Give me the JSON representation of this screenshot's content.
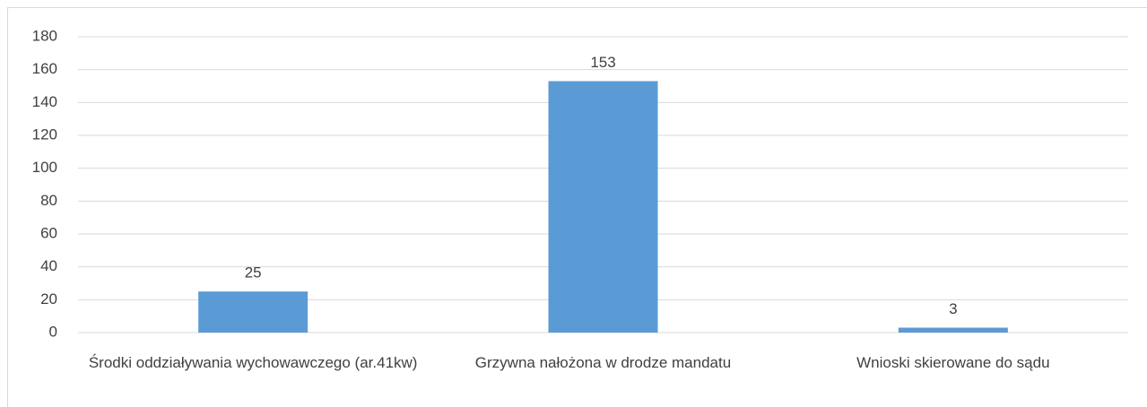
{
  "chart_data": {
    "type": "bar",
    "categories": [
      "Środki oddziaływania wychowawczego (ar.41kw)",
      "Grzywna nałożona w drodze mandatu",
      "Wnioski skierowane do sądu"
    ],
    "values": [
      25,
      153,
      3
    ],
    "color": "#5b9bd5",
    "ylim": [
      0,
      180
    ],
    "yticks": [
      0,
      20,
      40,
      60,
      80,
      100,
      120,
      140,
      160,
      180
    ],
    "grid": true,
    "data_labels": true
  }
}
